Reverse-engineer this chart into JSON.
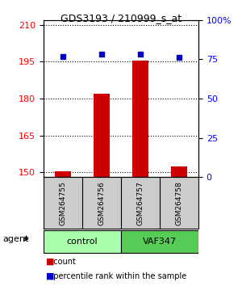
{
  "title": "GDS3193 / 210999_s_at",
  "samples": [
    "GSM264755",
    "GSM264756",
    "GSM264757",
    "GSM264758"
  ],
  "count_values": [
    150.5,
    182.0,
    195.5,
    152.5
  ],
  "percentile_values": [
    77.0,
    78.5,
    78.5,
    76.5
  ],
  "ylim_left": [
    148,
    212
  ],
  "ylim_right": [
    0,
    100
  ],
  "yticks_left": [
    150,
    165,
    180,
    195,
    210
  ],
  "yticks_right": [
    0,
    25,
    50,
    75,
    100
  ],
  "yticklabels_right": [
    "0",
    "25",
    "50",
    "75",
    "100%"
  ],
  "bar_color": "#cc0000",
  "dot_color": "#0000cc",
  "groups": [
    {
      "label": "control",
      "samples": [
        0,
        1
      ],
      "color": "#aaffaa"
    },
    {
      "label": "VAF347",
      "samples": [
        2,
        3
      ],
      "color": "#55cc55"
    }
  ],
  "group_row_label": "agent",
  "legend_count_label": "count",
  "legend_percentile_label": "percentile rank within the sample",
  "bar_width": 0.4,
  "background_color": "#ffffff",
  "plot_bg_color": "#ffffff",
  "sample_row_color": "#cccccc"
}
